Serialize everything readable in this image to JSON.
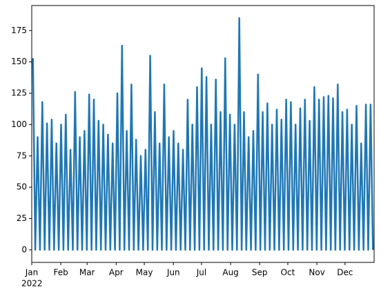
{
  "chart_data": {
    "type": "line",
    "series": [
      {
        "color": "#1f77b4",
        "values": [
          153,
          0,
          90,
          0,
          118,
          0,
          101,
          0,
          104,
          0,
          85,
          0,
          100,
          0,
          108,
          0,
          80,
          0,
          126,
          0,
          90,
          0,
          95,
          0,
          124,
          0,
          120,
          0,
          103,
          0,
          100,
          0,
          92,
          0,
          85,
          0,
          125,
          0,
          163,
          0,
          95,
          0,
          132,
          0,
          88,
          0,
          75,
          0,
          80,
          0,
          155,
          0,
          110,
          0,
          85,
          0,
          132,
          0,
          90,
          0,
          95,
          0,
          85,
          0,
          80,
          0,
          120,
          0,
          100,
          0,
          130,
          0,
          145,
          0,
          138,
          0,
          100,
          0,
          136,
          0,
          110,
          0,
          153,
          0,
          108,
          0,
          100,
          0,
          185,
          0,
          110,
          0,
          90,
          0,
          95,
          0,
          140,
          0,
          110,
          0,
          117,
          0,
          100,
          0,
          112,
          0,
          104,
          0,
          120,
          0,
          118,
          0,
          100,
          0,
          113,
          0,
          120,
          0,
          103,
          0,
          130,
          0,
          120,
          0,
          122,
          0,
          123,
          0,
          121,
          0,
          132,
          0,
          110,
          0,
          112,
          0,
          100,
          0,
          115,
          0,
          85,
          0,
          116,
          0,
          116,
          0
        ]
      }
    ],
    "ylim": [
      -10,
      195
    ],
    "yticks": [
      0,
      25,
      50,
      75,
      100,
      125,
      150,
      175
    ],
    "xlim": [
      0,
      365
    ],
    "xticks": [
      {
        "value": 0,
        "label": "Jan"
      },
      {
        "value": 31,
        "label": "Feb"
      },
      {
        "value": 59,
        "label": "Mar"
      },
      {
        "value": 90,
        "label": "Apr"
      },
      {
        "value": 120,
        "label": "May"
      },
      {
        "value": 151,
        "label": "Jun"
      },
      {
        "value": 181,
        "label": "Jul"
      },
      {
        "value": 212,
        "label": "Aug"
      },
      {
        "value": 243,
        "label": "Sep"
      },
      {
        "value": 273,
        "label": "Oct"
      },
      {
        "value": 304,
        "label": "Nov"
      },
      {
        "value": 334,
        "label": "Dec"
      }
    ],
    "x_sublabel": "2022"
  }
}
